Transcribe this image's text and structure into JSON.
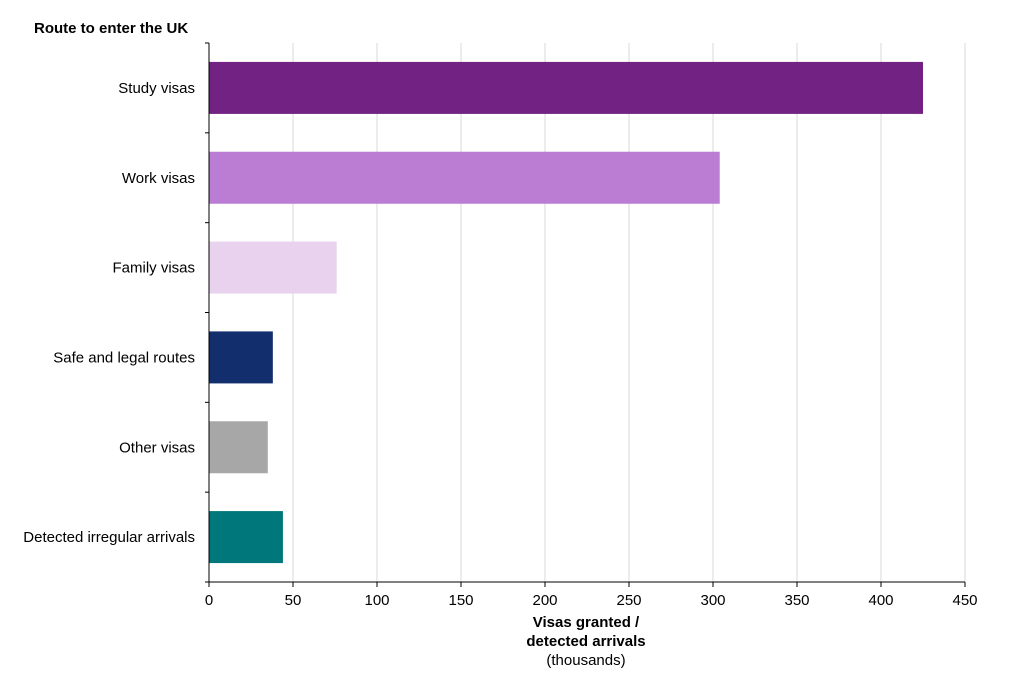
{
  "chart_data": {
    "type": "bar",
    "orientation": "horizontal",
    "title": "Route to enter the UK",
    "xlabel": "Visas granted / detected arrivals",
    "xlabel_lines": [
      "Visas granted /",
      "detected arrivals"
    ],
    "xlabel_unit": "(thousands)",
    "categories": [
      "Study visas",
      "Work visas",
      "Family visas",
      "Safe and legal routes",
      "Other visas",
      "Detected irregular arrivals"
    ],
    "values": [
      425,
      304,
      76,
      38,
      35,
      44
    ],
    "colors": [
      "#722282",
      "#bb7cd3",
      "#e8d2ee",
      "#122e6d",
      "#a7a7a7",
      "#00777b"
    ],
    "xlim": [
      0,
      450
    ],
    "xticks": [
      0,
      50,
      100,
      150,
      200,
      250,
      300,
      350,
      400,
      450
    ],
    "grid": true
  }
}
